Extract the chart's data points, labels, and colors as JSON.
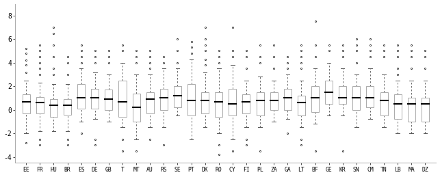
{
  "countries": [
    "EE",
    "FR",
    "HU",
    "BR",
    "ES",
    "DE",
    "GB",
    "T",
    "MT",
    "AU",
    "RS",
    "SE",
    "PT",
    "DK",
    "RO",
    "CY",
    "FI",
    "PL",
    "ZA",
    "GA",
    "LT",
    "BF",
    "GE",
    "KR",
    "SN",
    "CM",
    "TN",
    "LB",
    "MA",
    "DZ"
  ],
  "ylim": [
    -4.5,
    9.0
  ],
  "yticks": [
    -4,
    -2,
    0,
    2,
    4,
    6,
    8
  ],
  "background_color": "#ffffff",
  "box_facecolor": "white",
  "box_edgecolor": "#aaaaaa",
  "median_color": "black",
  "whisker_color": "#555555",
  "flier_color": "black",
  "boxes": [
    {
      "q1": -0.3,
      "median": 0.7,
      "q3": 1.3,
      "whislo": -2.0,
      "whishi": 2.5,
      "fliers_high": [
        3.2,
        3.8,
        4.2,
        4.8,
        5.2
      ],
      "fliers_low": [
        -2.8
      ]
    },
    {
      "q1": -0.3,
      "median": 0.6,
      "q3": 1.1,
      "whislo": -1.8,
      "whishi": 2.3,
      "fliers_high": [
        3.0,
        3.5,
        4.0,
        4.5,
        5.0,
        5.5
      ],
      "fliers_low": [
        -2.5,
        -3.0
      ]
    },
    {
      "q1": -0.6,
      "median": 0.4,
      "q3": 0.9,
      "whislo": -1.8,
      "whishi": 2.2,
      "fliers_high": [
        3.0,
        3.5,
        4.5,
        5.5,
        6.5,
        7.0
      ],
      "fliers_low": []
    },
    {
      "q1": -0.4,
      "median": 0.4,
      "q3": 0.9,
      "whislo": -1.8,
      "whishi": 2.2,
      "fliers_high": [
        3.0,
        4.0,
        4.5
      ],
      "fliers_low": [
        -2.5,
        -3.0
      ]
    },
    {
      "q1": 0.1,
      "median": 1.0,
      "q3": 2.2,
      "whislo": -1.0,
      "whishi": 3.5,
      "fliers_high": [
        4.0,
        4.5,
        5.0,
        5.5
      ],
      "fliers_low": [
        -2.0
      ]
    },
    {
      "q1": 0.1,
      "median": 1.0,
      "q3": 1.8,
      "whislo": -0.8,
      "whishi": 3.2,
      "fliers_high": [
        4.0,
        4.5,
        5.0
      ],
      "fliers_low": [
        -2.5,
        -3.0
      ]
    },
    {
      "q1": 0.0,
      "median": 0.9,
      "q3": 1.7,
      "whislo": -1.0,
      "whishi": 3.0,
      "fliers_high": [
        4.0,
        4.5,
        5.0
      ],
      "fliers_low": []
    },
    {
      "q1": -0.6,
      "median": 0.7,
      "q3": 2.5,
      "whislo": -1.5,
      "whishi": 4.0,
      "fliers_high": [
        5.0,
        5.5
      ],
      "fliers_low": [
        -2.5,
        -3.5
      ]
    },
    {
      "q1": -1.0,
      "median": 0.2,
      "q3": 1.4,
      "whislo": -2.5,
      "whishi": 3.0,
      "fliers_high": [
        4.0,
        4.5,
        5.0
      ],
      "fliers_low": [
        -3.5
      ]
    },
    {
      "q1": -0.3,
      "median": 0.9,
      "q3": 1.5,
      "whislo": -1.5,
      "whishi": 3.0,
      "fliers_high": [
        3.5,
        4.0,
        4.5,
        5.0
      ],
      "fliers_low": [
        -2.5
      ]
    },
    {
      "q1": 0.0,
      "median": 1.0,
      "q3": 1.8,
      "whislo": -1.5,
      "whishi": 3.5,
      "fliers_high": [
        4.0,
        4.5
      ],
      "fliers_low": [
        -3.0
      ]
    },
    {
      "q1": 0.2,
      "median": 1.2,
      "q3": 2.0,
      "whislo": -0.5,
      "whishi": 3.5,
      "fliers_high": [
        4.0,
        5.0,
        6.0
      ],
      "fliers_low": []
    },
    {
      "q1": -0.5,
      "median": 0.8,
      "q3": 2.2,
      "whislo": -2.5,
      "whishi": 4.3,
      "fliers_high": [
        4.8,
        5.3,
        5.8
      ],
      "fliers_low": []
    },
    {
      "q1": -0.3,
      "median": 0.8,
      "q3": 1.5,
      "whislo": -1.5,
      "whishi": 3.2,
      "fliers_high": [
        3.8,
        4.3,
        5.0,
        5.5,
        6.0,
        7.0
      ],
      "fliers_low": []
    },
    {
      "q1": -0.6,
      "median": 0.7,
      "q3": 1.5,
      "whislo": -2.0,
      "whishi": 3.5,
      "fliers_high": [
        4.0,
        4.5,
        5.0
      ],
      "fliers_low": [
        -3.0,
        -3.8
      ]
    },
    {
      "q1": -0.5,
      "median": 0.5,
      "q3": 1.8,
      "whislo": -2.5,
      "whishi": 3.8,
      "fliers_high": [
        4.5,
        5.0,
        7.0
      ],
      "fliers_low": [
        -3.5
      ]
    },
    {
      "q1": -0.3,
      "median": 0.7,
      "q3": 1.3,
      "whislo": -1.5,
      "whishi": 2.5,
      "fliers_high": [
        3.5,
        4.5,
        5.0
      ],
      "fliers_low": [
        -2.5,
        -3.0
      ]
    },
    {
      "q1": -0.5,
      "median": 0.8,
      "q3": 1.5,
      "whislo": -1.5,
      "whishi": 2.8,
      "fliers_high": [
        4.0,
        4.5,
        5.5
      ],
      "fliers_low": [
        -3.5
      ]
    },
    {
      "q1": 0.0,
      "median": 0.8,
      "q3": 1.5,
      "whislo": -1.0,
      "whishi": 2.5,
      "fliers_high": [
        3.5,
        4.5,
        5.5
      ],
      "fliers_low": []
    },
    {
      "q1": 0.0,
      "median": 1.0,
      "q3": 1.8,
      "whislo": -0.8,
      "whishi": 3.0,
      "fliers_high": [
        3.5,
        4.0,
        4.5
      ],
      "fliers_low": [
        -2.0
      ]
    },
    {
      "q1": -0.5,
      "median": 0.6,
      "q3": 1.2,
      "whislo": -1.5,
      "whishi": 2.5,
      "fliers_high": [
        3.5,
        4.0,
        4.5,
        5.0,
        5.5
      ],
      "fliers_low": [
        -2.5,
        -3.0
      ]
    },
    {
      "q1": -0.2,
      "median": 1.0,
      "q3": 2.0,
      "whislo": -1.2,
      "whishi": 3.5,
      "fliers_high": [
        4.5,
        5.5,
        7.5
      ],
      "fliers_low": [
        -3.5
      ]
    },
    {
      "q1": 0.5,
      "median": 1.5,
      "q3": 2.5,
      "whislo": -0.5,
      "whishi": 4.0,
      "fliers_high": [
        5.0,
        5.5
      ],
      "fliers_low": []
    },
    {
      "q1": 0.5,
      "median": 1.0,
      "q3": 2.0,
      "whislo": -0.5,
      "whishi": 3.5,
      "fliers_high": [
        4.5,
        5.0,
        5.5
      ],
      "fliers_low": [
        -3.5
      ]
    },
    {
      "q1": 0.0,
      "median": 1.0,
      "q3": 2.0,
      "whislo": -1.5,
      "whishi": 3.0,
      "fliers_high": [
        4.0,
        5.0,
        5.5,
        6.0
      ],
      "fliers_low": []
    },
    {
      "q1": 0.2,
      "median": 1.0,
      "q3": 2.0,
      "whislo": -0.8,
      "whishi": 3.5,
      "fliers_high": [
        4.5,
        5.0,
        5.5,
        6.0
      ],
      "fliers_low": []
    },
    {
      "q1": -0.5,
      "median": 0.8,
      "q3": 1.5,
      "whislo": -1.5,
      "whishi": 3.0,
      "fliers_high": [
        4.5,
        5.0,
        5.5
      ],
      "fliers_low": []
    },
    {
      "q1": -0.8,
      "median": 0.5,
      "q3": 1.3,
      "whislo": -2.0,
      "whishi": 2.5,
      "fliers_high": [
        3.0,
        3.5,
        4.5,
        5.0,
        5.5
      ],
      "fliers_low": []
    },
    {
      "q1": -1.0,
      "median": 0.5,
      "q3": 1.0,
      "whislo": -2.0,
      "whishi": 2.5,
      "fliers_high": [
        3.5,
        4.5,
        5.0,
        5.5
      ],
      "fliers_low": []
    },
    {
      "q1": -1.0,
      "median": 0.5,
      "q3": 1.0,
      "whislo": -2.0,
      "whishi": 2.5,
      "fliers_high": [
        3.5,
        4.5,
        5.0
      ],
      "fliers_low": []
    }
  ]
}
